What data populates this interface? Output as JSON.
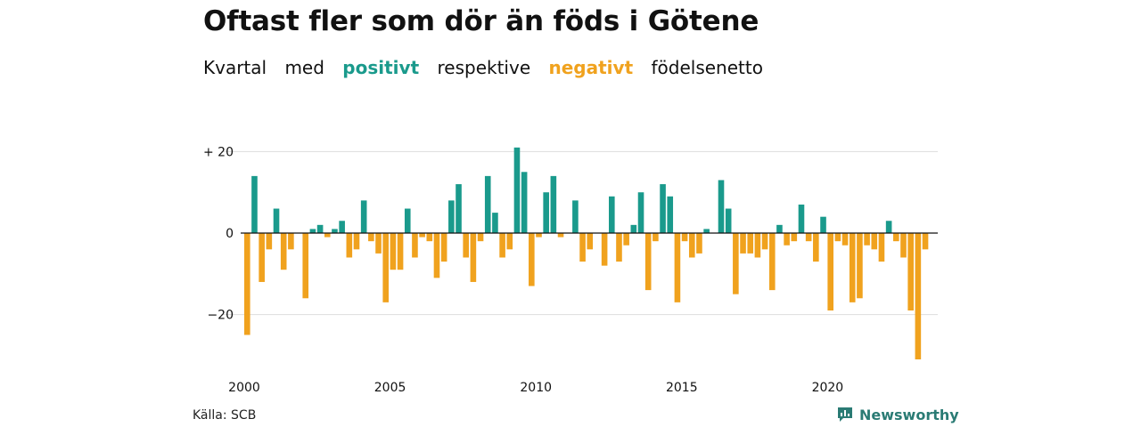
{
  "title": "Oftast fler som dör än föds i Götene",
  "subtitle": {
    "w1": "Kvartal",
    "w2": "med",
    "positive": "positivt",
    "w3": "respektive",
    "negative": "negativt",
    "w4": "födelsenetto"
  },
  "source": "Källa: SCB",
  "brand": "Newsworthy",
  "colors": {
    "positive": "#1a9a8c",
    "negative": "#f0a21e",
    "grid": "#dddddd",
    "zero": "#111111"
  },
  "chart_data": {
    "type": "bar",
    "ylim": [
      -31,
      21
    ],
    "yticks": [
      {
        "value": 20,
        "label": "+ 20"
      },
      {
        "value": 0,
        "label": "0"
      },
      {
        "value": -20,
        "label": "−20"
      }
    ],
    "xticks": [
      "2000",
      "2005",
      "2010",
      "2015",
      "2020"
    ],
    "start_year": 2000,
    "values": [
      -25,
      14,
      -12,
      -4,
      6,
      -9,
      -4,
      0,
      -16,
      1,
      2,
      -1,
      1,
      3,
      -6,
      -4,
      8,
      -2,
      -5,
      -17,
      -9,
      -9,
      6,
      -6,
      -1,
      -2,
      -11,
      -7,
      8,
      12,
      -6,
      -12,
      -2,
      14,
      5,
      -6,
      -4,
      21,
      15,
      -13,
      -1,
      10,
      14,
      -1,
      0,
      8,
      -7,
      -4,
      0,
      -8,
      9,
      -7,
      -3,
      2,
      10,
      -14,
      -2,
      12,
      9,
      -17,
      -2,
      -6,
      -5,
      1,
      0,
      13,
      6,
      -15,
      -5,
      -5,
      -6,
      -4,
      -14,
      2,
      -3,
      -2,
      7,
      -2,
      -7,
      4,
      -19,
      -2,
      -3,
      -17,
      -16,
      -3,
      -4,
      -7,
      3,
      -2,
      -6,
      -19,
      -31,
      -4
    ]
  }
}
